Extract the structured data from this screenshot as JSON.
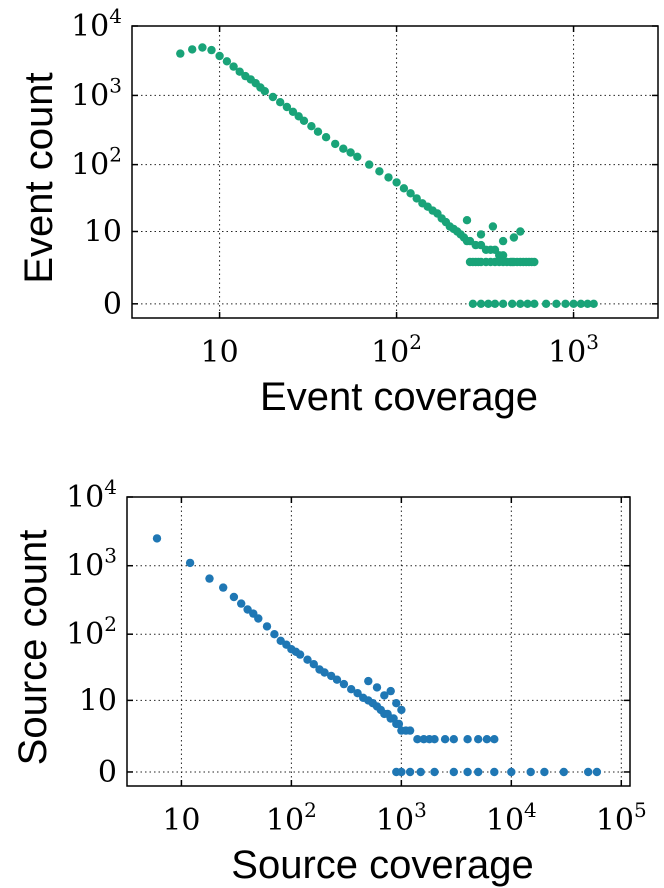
{
  "chart_data": [
    {
      "type": "scatter",
      "color": "#19a378",
      "xlabel": "Event coverage",
      "ylabel": "Event count",
      "xscale": "log",
      "yscale": "symlog",
      "xlim": [
        3.2,
        3000
      ],
      "ylim": [
        -0.6,
        10000
      ],
      "grid": true,
      "xticks": [
        {
          "v": 10,
          "base": "10",
          "exp": ""
        },
        {
          "v": 100,
          "base": "10",
          "exp": "2"
        },
        {
          "v": 1000,
          "base": "10",
          "exp": "3"
        }
      ],
      "yticks": [
        {
          "v": 0,
          "base": "0",
          "exp": ""
        },
        {
          "v": 10,
          "base": "10",
          "exp": ""
        },
        {
          "v": 100,
          "base": "10",
          "exp": "2"
        },
        {
          "v": 1000,
          "base": "10",
          "exp": "3"
        },
        {
          "v": 10000,
          "base": "10",
          "exp": "4"
        }
      ],
      "x": [
        6,
        7,
        8,
        9,
        10,
        11,
        12,
        13,
        14,
        15,
        16,
        17,
        18,
        20,
        22,
        24,
        26,
        28,
        30,
        33,
        36,
        40,
        45,
        50,
        55,
        60,
        70,
        80,
        90,
        100,
        110,
        120,
        130,
        140,
        150,
        160,
        170,
        180,
        190,
        200,
        210,
        220,
        230,
        240,
        250,
        260,
        280,
        300,
        320,
        340,
        360,
        380,
        400,
        450,
        500,
        460,
        400,
        350,
        300,
        250,
        260,
        270,
        280,
        290,
        300,
        320,
        340,
        360,
        380,
        400,
        420,
        440,
        460,
        480,
        500,
        520,
        540,
        560,
        580,
        600,
        270,
        300,
        330,
        360,
        400,
        450,
        500,
        550,
        600,
        700,
        800,
        900,
        1000,
        1100,
        1200,
        1300
      ],
      "y": [
        4000,
        4600,
        4900,
        4500,
        3700,
        3100,
        2600,
        2200,
        1900,
        1700,
        1500,
        1300,
        1150,
        950,
        800,
        680,
        580,
        500,
        430,
        360,
        300,
        250,
        200,
        170,
        150,
        130,
        100,
        80,
        65,
        55,
        45,
        38,
        32,
        27,
        24,
        21,
        19,
        16,
        14,
        12,
        11,
        10,
        9,
        8,
        7,
        7,
        6,
        6,
        5,
        5,
        5,
        4,
        4,
        3,
        10,
        8,
        7,
        12,
        9,
        15,
        3,
        3,
        3,
        3,
        3,
        3,
        3,
        3,
        3,
        3,
        3,
        3,
        3,
        3,
        3,
        3,
        3,
        3,
        3,
        3,
        0,
        0,
        0,
        0,
        0,
        0,
        0,
        0,
        0,
        0,
        0,
        0,
        0,
        0,
        0,
        0
      ]
    },
    {
      "type": "scatter",
      "color": "#1f77b4",
      "xlabel": "Source coverage",
      "ylabel": "Source count",
      "xscale": "log",
      "yscale": "symlog",
      "xlim": [
        3.2,
        120000
      ],
      "ylim": [
        -0.6,
        10000
      ],
      "grid": true,
      "xticks": [
        {
          "v": 10,
          "base": "10",
          "exp": ""
        },
        {
          "v": 100,
          "base": "10",
          "exp": "2"
        },
        {
          "v": 1000,
          "base": "10",
          "exp": "3"
        },
        {
          "v": 10000,
          "base": "10",
          "exp": "4"
        },
        {
          "v": 100000,
          "base": "10",
          "exp": "5"
        }
      ],
      "yticks": [
        {
          "v": 0,
          "base": "0",
          "exp": ""
        },
        {
          "v": 10,
          "base": "10",
          "exp": ""
        },
        {
          "v": 100,
          "base": "10",
          "exp": "2"
        },
        {
          "v": 1000,
          "base": "10",
          "exp": "3"
        },
        {
          "v": 10000,
          "base": "10",
          "exp": "4"
        }
      ],
      "x": [
        6,
        12,
        18,
        24,
        30,
        35,
        40,
        45,
        50,
        60,
        70,
        80,
        90,
        100,
        110,
        120,
        140,
        160,
        180,
        200,
        230,
        260,
        300,
        350,
        400,
        450,
        500,
        550,
        600,
        650,
        700,
        750,
        800,
        850,
        900,
        950,
        1000,
        1100,
        1200,
        1400,
        1600,
        1800,
        2000,
        2500,
        3000,
        4000,
        5000,
        6000,
        7000,
        500,
        600,
        700,
        800,
        900,
        1000,
        900,
        1000,
        1200,
        1500,
        2000,
        3000,
        4000,
        5000,
        7000,
        10000,
        15000,
        20000,
        30000,
        50000,
        60000
      ],
      "y": [
        2500,
        1100,
        650,
        480,
        350,
        280,
        230,
        200,
        170,
        130,
        100,
        80,
        70,
        60,
        55,
        50,
        42,
        36,
        30,
        27,
        24,
        21,
        18,
        15,
        13,
        11,
        10,
        9,
        8,
        7,
        6,
        6,
        5,
        5,
        4,
        4,
        3,
        3,
        3,
        2,
        2,
        2,
        2,
        2,
        2,
        2,
        2,
        2,
        2,
        20,
        16,
        12,
        14,
        9,
        7,
        0,
        0,
        0,
        0,
        0,
        0,
        0,
        0,
        0,
        0,
        0,
        0,
        0,
        0,
        0
      ]
    }
  ]
}
